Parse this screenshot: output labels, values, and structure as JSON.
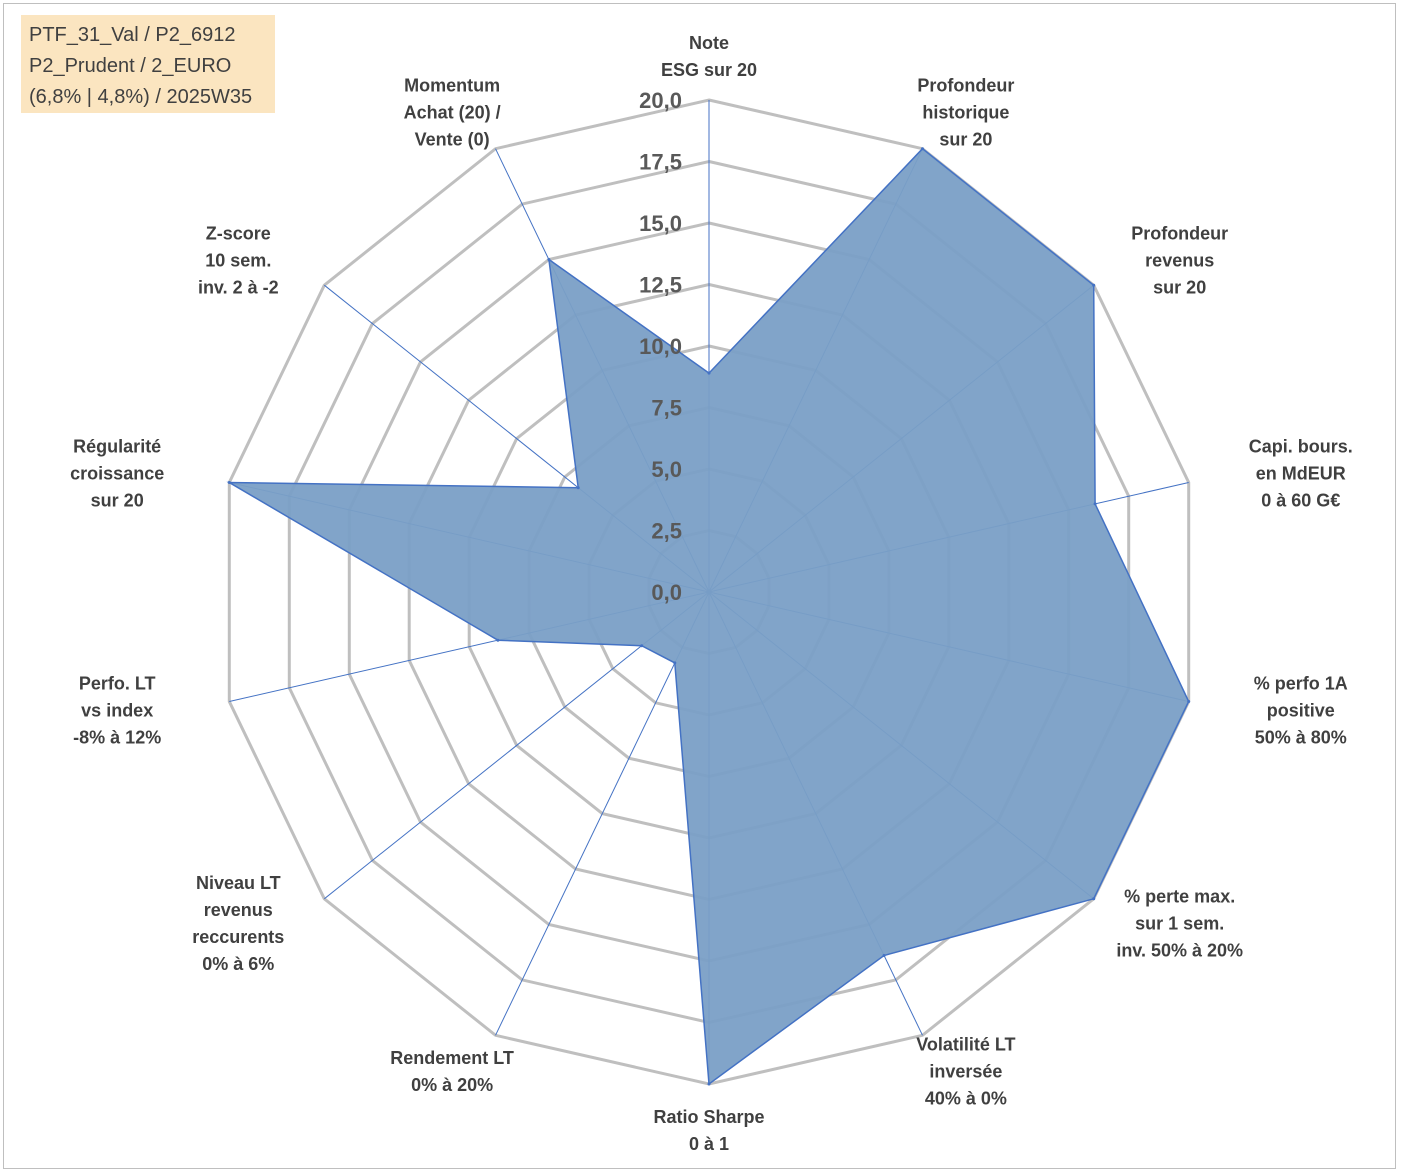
{
  "info_box": {
    "lines": [
      "PTF_31_Val / P2_6912",
      "P2_Prudent / 2_EURO",
      "(6,8% | 4,8%) / 2025W35"
    ]
  },
  "colors": {
    "fill": "#7a9fc6",
    "stroke": "#4472c4",
    "grid": "#bfbfbf",
    "spoke": "#4472c4",
    "info_bg": "#fbe5c0"
  },
  "chart_data": {
    "type": "radar",
    "rmax": 20,
    "tick_step": 2.5,
    "tick_labels": [
      "0,0",
      "2,5",
      "5,0",
      "7,5",
      "10,0",
      "12,5",
      "15,0",
      "17,5",
      "20,0"
    ],
    "axes": [
      {
        "lines": [
          "Note",
          "ESG sur 20"
        ],
        "value": 8.9
      },
      {
        "lines": [
          "Profondeur",
          "historique",
          "sur 20"
        ],
        "value": 20
      },
      {
        "lines": [
          "Profondeur",
          "revenus",
          "sur 20"
        ],
        "value": 20
      },
      {
        "lines": [
          "Capi. bours.",
          "en MdEUR",
          "0 à 60 G€"
        ],
        "value": 16.1
      },
      {
        "lines": [
          "% perfo 1A",
          "positive",
          "50% à 80%"
        ],
        "value": 20
      },
      {
        "lines": [
          "% perte max.",
          "sur 1 sem.",
          "inv. 50% à 20%"
        ],
        "value": 20
      },
      {
        "lines": [
          "Volatilité LT",
          "inversée",
          "40% à 0%"
        ],
        "value": 16.4
      },
      {
        "lines": [
          "Ratio Sharpe",
          "0 à 1"
        ],
        "value": 20
      },
      {
        "lines": [
          "Rendement LT",
          "0% à 20%"
        ],
        "value": 3.2
      },
      {
        "lines": [
          "Niveau LT",
          "revenus",
          "reccurents",
          "0% à 6%"
        ],
        "value": 3.5
      },
      {
        "lines": [
          "Perfo. LT",
          "vs index",
          "-8% à 12%"
        ],
        "value": 8.8
      },
      {
        "lines": [
          "Régularité",
          "croissance",
          "sur 20"
        ],
        "value": 20
      },
      {
        "lines": [
          "Z-score",
          "10 sem.",
          "inv. 2 à -2"
        ],
        "value": 6.8
      },
      {
        "lines": [
          "Momentum",
          "Achat (20) /",
          "Vente (0)"
        ],
        "value": 15
      }
    ]
  }
}
